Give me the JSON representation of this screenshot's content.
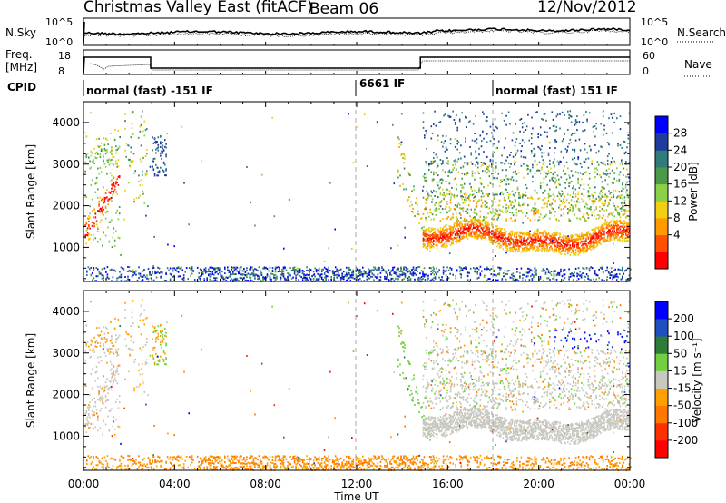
{
  "header": {
    "title": "Christmas Valley East (fitACF)",
    "beam": "Beam 06",
    "date": "12/Nov/2012"
  },
  "noise_panel": {
    "left_label": "N.Sky",
    "right_label": "N.Search",
    "ticks_left": [
      "10^5",
      "10^0"
    ],
    "ticks_right": [
      "10^5",
      "10^0"
    ]
  },
  "freq_panel": {
    "left_label_1": "Freq.",
    "left_label_2": "[MHz]",
    "right_label": "Nave",
    "ticks_left": [
      "18",
      "8"
    ],
    "ticks_right": [
      "60",
      "0"
    ]
  },
  "cpid": {
    "label": "CPID",
    "segments": [
      {
        "text": "normal (fast) -151 IF",
        "start": 0
      },
      {
        "text": "6661 IF",
        "start": 12
      },
      {
        "text": "normal (fast) 151 IF",
        "start": 18
      }
    ]
  },
  "chart_data": [
    {
      "type": "heatmap",
      "panel": "power",
      "ylabel": "Slant Range [km]",
      "ylim": [
        180,
        4500
      ],
      "yticks": [
        "4000",
        "3000",
        "2000",
        "1000"
      ],
      "xlim": [
        0,
        24
      ],
      "colorbar": {
        "label": "Power [dB]",
        "ticks": [
          "28",
          "24",
          "20",
          "16",
          "12",
          "8",
          "4"
        ],
        "colors": [
          "#0000ff",
          "#1e3c9c",
          "#2f7c7a",
          "#4a9a4a",
          "#8cd048",
          "#f0d010",
          "#ff9a00",
          "#ff5000",
          "#ff0000"
        ]
      }
    },
    {
      "type": "heatmap",
      "panel": "velocity",
      "ylabel": "Slant Range [km]",
      "ylim": [
        180,
        4500
      ],
      "yticks": [
        "4000",
        "3000",
        "2000",
        "1000"
      ],
      "xlim": [
        0,
        24
      ],
      "xticks": [
        "00:00",
        "04:00",
        "08:00",
        "12:00",
        "16:00",
        "20:00",
        "00:00"
      ],
      "xlabel": "Time UT",
      "colorbar": {
        "label": "Velocity [m s⁻¹]",
        "ticks": [
          "200",
          "100",
          "50",
          "15",
          "-15",
          "-50",
          "-100",
          "-200"
        ],
        "colors": [
          "#0000ff",
          "#2050c0",
          "#2f7c3a",
          "#70d040",
          "#c8c8c0",
          "#ffa000",
          "#ff7800",
          "#ff3000",
          "#ff0000"
        ]
      }
    }
  ]
}
